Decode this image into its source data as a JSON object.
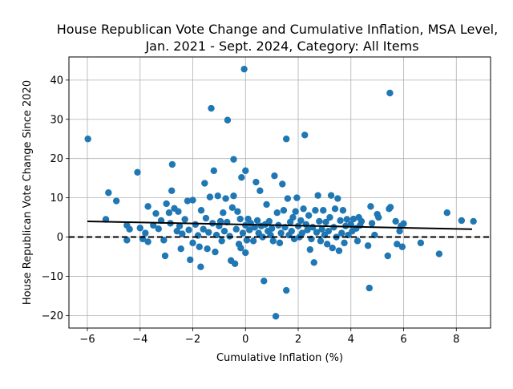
{
  "colors": {
    "points": "#1f77b4",
    "fit_line": "#000000",
    "zero_line": "#000000",
    "grid": "#b0b0b0",
    "background": "#ffffff"
  },
  "chart_data": {
    "type": "scatter",
    "title": "House Republican Vote Change and Cumulative Inflation, MSA Level, Jan. 2021 - Sept. 2024, Category: All Items",
    "title_lines": [
      "House Republican Vote Change and Cumulative Inflation, MSA Level,",
      "Jan. 2021 - Sept. 2024, Category: All Items"
    ],
    "xlabel": "Cumulative Inflation (%)",
    "ylabel": "House Republican Vote Change Since 2020",
    "xlim": [
      -6.7,
      9.3
    ],
    "ylim": [
      -23.2,
      45.9
    ],
    "xticks": [
      -6,
      -4,
      -2,
      0,
      2,
      4,
      6,
      8
    ],
    "yticks": [
      -20,
      -10,
      0,
      10,
      20,
      30,
      40
    ],
    "grid": true,
    "legend": "none",
    "reference_line": {
      "y": 0,
      "style": "dashed"
    },
    "fit_line": {
      "x": [
        -6.0,
        8.6
      ],
      "y": [
        4.0,
        2.0
      ]
    },
    "points": [
      {
        "x": -5.98,
        "y": 25.0
      },
      {
        "x": -5.3,
        "y": 4.5
      },
      {
        "x": -5.2,
        "y": 11.3
      },
      {
        "x": -4.9,
        "y": 9.2
      },
      {
        "x": -4.5,
        "y": -0.8
      },
      {
        "x": -4.4,
        "y": 2.0
      },
      {
        "x": -4.5,
        "y": 3.0
      },
      {
        "x": -4.1,
        "y": 16.5
      },
      {
        "x": -4.0,
        "y": 2.3
      },
      {
        "x": -3.9,
        "y": -0.5
      },
      {
        "x": -3.8,
        "y": 1.0
      },
      {
        "x": -3.7,
        "y": 7.8
      },
      {
        "x": -3.7,
        "y": -1.2
      },
      {
        "x": -3.5,
        "y": 3.0
      },
      {
        "x": -3.4,
        "y": 6.0
      },
      {
        "x": -3.3,
        "y": 2.1
      },
      {
        "x": -3.2,
        "y": 4.2
      },
      {
        "x": -3.1,
        "y": -0.8
      },
      {
        "x": -3.05,
        "y": -4.8
      },
      {
        "x": -3.0,
        "y": 8.5
      },
      {
        "x": -2.9,
        "y": 6.2
      },
      {
        "x": -2.85,
        "y": 3.5
      },
      {
        "x": -2.8,
        "y": 11.8
      },
      {
        "x": -2.78,
        "y": 18.5
      },
      {
        "x": -2.7,
        "y": 7.3
      },
      {
        "x": -2.6,
        "y": 1.5
      },
      {
        "x": -2.55,
        "y": 6.5
      },
      {
        "x": -2.5,
        "y": 2.8
      },
      {
        "x": -2.45,
        "y": -3.0
      },
      {
        "x": -2.4,
        "y": 0.8
      },
      {
        "x": -2.3,
        "y": 4.5
      },
      {
        "x": -2.2,
        "y": 9.2
      },
      {
        "x": -2.15,
        "y": 1.8
      },
      {
        "x": -2.1,
        "y": -5.8
      },
      {
        "x": -2.0,
        "y": 9.4
      },
      {
        "x": -2.0,
        "y": -1.5
      },
      {
        "x": -1.9,
        "y": 3.2
      },
      {
        "x": -1.8,
        "y": 0.4
      },
      {
        "x": -1.75,
        "y": -2.5
      },
      {
        "x": -1.7,
        "y": -7.6
      },
      {
        "x": -1.68,
        "y": 6.8
      },
      {
        "x": -1.6,
        "y": 2.0
      },
      {
        "x": -1.55,
        "y": 13.7
      },
      {
        "x": -1.5,
        "y": 4.8
      },
      {
        "x": -1.45,
        "y": -3.0
      },
      {
        "x": -1.4,
        "y": 1.2
      },
      {
        "x": -1.35,
        "y": 10.2
      },
      {
        "x": -1.3,
        "y": 32.8
      },
      {
        "x": -1.25,
        "y": 3.5
      },
      {
        "x": -1.2,
        "y": 16.9
      },
      {
        "x": -1.15,
        "y": -3.8
      },
      {
        "x": -1.1,
        "y": 0.5
      },
      {
        "x": -1.05,
        "y": 10.5
      },
      {
        "x": -1.0,
        "y": 2.8
      },
      {
        "x": -0.95,
        "y": 4.0
      },
      {
        "x": -0.9,
        "y": -1.0
      },
      {
        "x": -0.85,
        "y": 6.2
      },
      {
        "x": -0.8,
        "y": 1.5
      },
      {
        "x": -0.75,
        "y": 9.8
      },
      {
        "x": -0.7,
        "y": 3.8
      },
      {
        "x": -0.68,
        "y": 29.8
      },
      {
        "x": -0.6,
        "y": 0.2
      },
      {
        "x": -0.55,
        "y": -6.0
      },
      {
        "x": -0.5,
        "y": 7.5
      },
      {
        "x": -0.45,
        "y": 19.8
      },
      {
        "x": -0.45,
        "y": 10.5
      },
      {
        "x": -0.4,
        "y": -6.8
      },
      {
        "x": -0.35,
        "y": 2.0
      },
      {
        "x": -0.3,
        "y": 6.5
      },
      {
        "x": -0.25,
        "y": -1.8
      },
      {
        "x": -0.2,
        "y": 4.6
      },
      {
        "x": -0.18,
        "y": -2.8
      },
      {
        "x": -0.15,
        "y": 15.2
      },
      {
        "x": -0.1,
        "y": 1.0
      },
      {
        "x": -0.05,
        "y": 42.8
      },
      {
        "x": 0.0,
        "y": 16.9
      },
      {
        "x": 0.0,
        "y": 3.0
      },
      {
        "x": 0.0,
        "y": -4.0
      },
      {
        "x": 0.05,
        "y": -0.8
      },
      {
        "x": 0.1,
        "y": 4.6
      },
      {
        "x": 0.15,
        "y": 1.8
      },
      {
        "x": 0.2,
        "y": 3.5
      },
      {
        "x": 0.3,
        "y": -1.0
      },
      {
        "x": 0.35,
        "y": 2.5
      },
      {
        "x": 0.4,
        "y": 14.0
      },
      {
        "x": 0.45,
        "y": 4.2
      },
      {
        "x": 0.5,
        "y": 1.0
      },
      {
        "x": 0.55,
        "y": 11.8
      },
      {
        "x": 0.6,
        "y": 2.8
      },
      {
        "x": 0.65,
        "y": 0.0
      },
      {
        "x": 0.7,
        "y": -11.2
      },
      {
        "x": 0.75,
        "y": 3.2
      },
      {
        "x": 0.8,
        "y": 8.3
      },
      {
        "x": 0.85,
        "y": 1.5
      },
      {
        "x": 0.9,
        "y": 4.0
      },
      {
        "x": 0.95,
        "y": 0.5
      },
      {
        "x": 1.0,
        "y": 2.2
      },
      {
        "x": 1.05,
        "y": -1.0
      },
      {
        "x": 1.1,
        "y": 15.6
      },
      {
        "x": 1.15,
        "y": -20.2
      },
      {
        "x": 1.2,
        "y": 6.2
      },
      {
        "x": 1.25,
        "y": 3.0
      },
      {
        "x": 1.3,
        "y": -1.5
      },
      {
        "x": 1.35,
        "y": 1.0
      },
      {
        "x": 1.4,
        "y": 13.5
      },
      {
        "x": 1.45,
        "y": 6.8
      },
      {
        "x": 1.5,
        "y": 2.5
      },
      {
        "x": 1.55,
        "y": 25.0
      },
      {
        "x": 1.55,
        "y": -13.6
      },
      {
        "x": 1.6,
        "y": 9.8
      },
      {
        "x": 1.65,
        "y": 0.5
      },
      {
        "x": 1.7,
        "y": 3.8
      },
      {
        "x": 1.75,
        "y": 1.5
      },
      {
        "x": 1.8,
        "y": 5.0
      },
      {
        "x": 1.85,
        "y": -0.5
      },
      {
        "x": 1.9,
        "y": 6.5
      },
      {
        "x": 1.95,
        "y": 10.0
      },
      {
        "x": 2.0,
        "y": 2.8
      },
      {
        "x": 2.05,
        "y": 0.0
      },
      {
        "x": 2.1,
        "y": 4.2
      },
      {
        "x": 2.15,
        "y": 1.0
      },
      {
        "x": 2.2,
        "y": 7.2
      },
      {
        "x": 2.25,
        "y": 26.0
      },
      {
        "x": 2.3,
        "y": 3.2
      },
      {
        "x": 2.35,
        "y": 1.8
      },
      {
        "x": 2.4,
        "y": 5.5
      },
      {
        "x": 2.45,
        "y": -3.2
      },
      {
        "x": 2.5,
        "y": -0.5
      },
      {
        "x": 2.55,
        "y": 2.5
      },
      {
        "x": 2.6,
        "y": -6.5
      },
      {
        "x": 2.65,
        "y": 6.8
      },
      {
        "x": 2.7,
        "y": 1.2
      },
      {
        "x": 2.75,
        "y": 10.6
      },
      {
        "x": 2.8,
        "y": 4.0
      },
      {
        "x": 2.85,
        "y": -1.0
      },
      {
        "x": 2.9,
        "y": 2.0
      },
      {
        "x": 2.95,
        "y": 6.8
      },
      {
        "x": 3.0,
        "y": 0.5
      },
      {
        "x": 3.05,
        "y": 3.8
      },
      {
        "x": 3.1,
        "y": -1.8
      },
      {
        "x": 3.15,
        "y": 1.5
      },
      {
        "x": 3.2,
        "y": 5.0
      },
      {
        "x": 3.25,
        "y": 10.6
      },
      {
        "x": 3.3,
        "y": -2.8
      },
      {
        "x": 3.35,
        "y": 2.5
      },
      {
        "x": 3.4,
        "y": 7.2
      },
      {
        "x": 3.45,
        "y": 0.0
      },
      {
        "x": 3.5,
        "y": 9.8
      },
      {
        "x": 3.55,
        "y": -3.5
      },
      {
        "x": 3.6,
        "y": 4.2
      },
      {
        "x": 3.65,
        "y": 1.0
      },
      {
        "x": 3.7,
        "y": 6.8
      },
      {
        "x": 3.75,
        "y": -1.5
      },
      {
        "x": 3.8,
        "y": 2.8
      },
      {
        "x": 3.85,
        "y": 4.5
      },
      {
        "x": 3.9,
        "y": 0.5
      },
      {
        "x": 4.0,
        "y": 3.2
      },
      {
        "x": 4.05,
        "y": 1.5
      },
      {
        "x": 4.1,
        "y": 4.6
      },
      {
        "x": 4.2,
        "y": 2.2
      },
      {
        "x": 4.25,
        "y": -1.0
      },
      {
        "x": 4.3,
        "y": 5.0
      },
      {
        "x": 4.35,
        "y": 3.0
      },
      {
        "x": 4.4,
        "y": 4.0
      },
      {
        "x": 4.65,
        "y": -2.2
      },
      {
        "x": 4.7,
        "y": -13.0
      },
      {
        "x": 4.75,
        "y": 7.8
      },
      {
        "x": 4.8,
        "y": 3.5
      },
      {
        "x": 4.9,
        "y": 0.5
      },
      {
        "x": 5.0,
        "y": 5.8
      },
      {
        "x": 5.05,
        "y": 5.0
      },
      {
        "x": 5.4,
        "y": -4.8
      },
      {
        "x": 5.45,
        "y": 7.2
      },
      {
        "x": 5.48,
        "y": 36.7
      },
      {
        "x": 5.5,
        "y": 7.6
      },
      {
        "x": 5.7,
        "y": 4.0
      },
      {
        "x": 5.75,
        "y": -1.8
      },
      {
        "x": 5.85,
        "y": 1.5
      },
      {
        "x": 5.9,
        "y": 2.8
      },
      {
        "x": 5.95,
        "y": -2.5
      },
      {
        "x": 6.0,
        "y": 3.4
      },
      {
        "x": 6.65,
        "y": -1.5
      },
      {
        "x": 7.35,
        "y": -4.3
      },
      {
        "x": 7.65,
        "y": 6.2
      },
      {
        "x": 8.2,
        "y": 4.2
      },
      {
        "x": 8.65,
        "y": 4.0
      }
    ]
  }
}
